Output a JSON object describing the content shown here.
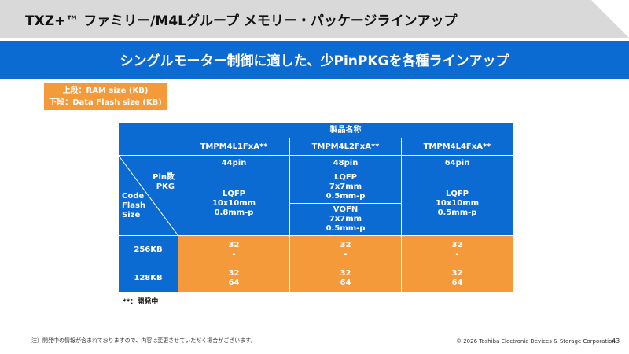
{
  "header": {
    "title": "TXZ+™ ファミリー/M4Lグループ メモリー・パッケージラインアップ",
    "subtitle": "シングルモーター制御に適した、少PinPKGを各種ラインアップ"
  },
  "legend": {
    "line1": "上段：RAM size (KB)",
    "line2": "下段：Data Flash size (KB)"
  },
  "table": {
    "product_header": "製品名称",
    "products": [
      "TMPM4L1FxA**",
      "TMPM4L2FxA**",
      "TMPM4L4FxA**"
    ],
    "corner": {
      "pin_label": "Pin数",
      "pkg_label": "PKG",
      "code_label1": "Code",
      "code_label2": "Flash",
      "code_label3": "Size"
    },
    "pins": [
      "44pin",
      "48pin",
      "64pin"
    ],
    "pkg": {
      "p1": {
        "l1": "LQFP",
        "l2": "10x10mm",
        "l3": "0.8mm-p"
      },
      "p2a": {
        "l1": "LQFP",
        "l2": "7x7mm",
        "l3": "0.5mm-p"
      },
      "p2b": {
        "l1": "VQFN",
        "l2": "7x7mm",
        "l3": "0.5mm-p"
      },
      "p3": {
        "l1": "LQFP",
        "l2": "10x10mm",
        "l3": "0.5mm-p"
      }
    },
    "rows": [
      {
        "size": "256KB",
        "cells": [
          {
            "ram": "32",
            "df": "-"
          },
          {
            "ram": "32",
            "df": "-"
          },
          {
            "ram": "32",
            "df": "-"
          }
        ]
      },
      {
        "size": "128KB",
        "cells": [
          {
            "ram": "32",
            "df": "64"
          },
          {
            "ram": "32",
            "df": "64"
          },
          {
            "ram": "32",
            "df": "64"
          }
        ]
      }
    ]
  },
  "note_dev": "**：開発中",
  "footer": {
    "note": "注）開発中の情報が含まれておりますので、内容は変更させていただく場合がございます。",
    "copyright": "© 2026 Toshiba Electronic Devices & Storage Corporation",
    "page": "43"
  },
  "colors": {
    "blue": "#0c6bd3",
    "orange": "#f59a3b",
    "title_bar": "#d9d9d9"
  }
}
